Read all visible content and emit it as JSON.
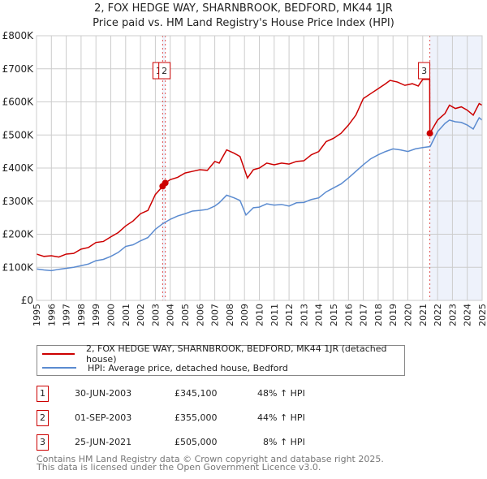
{
  "chart_data": {
    "type": "line",
    "title": "2, FOX HEDGE WAY, SHARNBROOK, BEDFORD, MK44 1JR",
    "subtitle": "Price paid vs. HM Land Registry's House Price Index (HPI)",
    "xlim": [
      1995,
      2025
    ],
    "ylim": [
      0,
      800000
    ],
    "x_ticks": [
      "1995",
      "1996",
      "1997",
      "1998",
      "1999",
      "2000",
      "2001",
      "2002",
      "2003",
      "2004",
      "2005",
      "2006",
      "2007",
      "2008",
      "2009",
      "2010",
      "2011",
      "2012",
      "2013",
      "2014",
      "2015",
      "2016",
      "2017",
      "2018",
      "2019",
      "2020",
      "2021",
      "2022",
      "2023",
      "2024",
      "2025"
    ],
    "y_ticks": [
      {
        "v": 0,
        "label": "£0"
      },
      {
        "v": 100000,
        "label": "£100K"
      },
      {
        "v": 200000,
        "label": "£200K"
      },
      {
        "v": 300000,
        "label": "£300K"
      },
      {
        "v": 400000,
        "label": "£400K"
      },
      {
        "v": 500000,
        "label": "£500K"
      },
      {
        "v": 600000,
        "label": "£600K"
      },
      {
        "v": 700000,
        "label": "£700K"
      },
      {
        "v": 800000,
        "label": "£800K"
      }
    ],
    "grid": true,
    "series": [
      {
        "name": "2, FOX HEDGE WAY, SHARNBROOK, BEDFORD, MK44 1JR (detached house)",
        "color": "#cc0000",
        "x": [
          1995,
          1995.5,
          1996,
          1996.5,
          1997,
          1997.5,
          1998,
          1998.5,
          1999,
          1999.5,
          2000,
          2000.5,
          2001,
          2001.5,
          2002,
          2002.5,
          2003,
          2003.5,
          2003.67,
          2004,
          2004.5,
          2005,
          2005.5,
          2006,
          2006.5,
          2007,
          2007.3,
          2007.8,
          2008.3,
          2008.7,
          2009.2,
          2009.6,
          2010,
          2010.5,
          2011,
          2011.5,
          2012,
          2012.5,
          2013,
          2013.5,
          2014,
          2014.5,
          2015,
          2015.5,
          2016,
          2016.5,
          2017,
          2017.5,
          2018,
          2018.5,
          2018.8,
          2019.3,
          2019.8,
          2020.3,
          2020.7,
          2021,
          2021.3,
          2021.47,
          2021.48,
          2022,
          2022.5,
          2022.8,
          2023.2,
          2023.6,
          2024,
          2024.4,
          2024.8,
          2025
        ],
        "y": [
          140000,
          133000,
          135000,
          131000,
          140000,
          142000,
          155000,
          160000,
          175000,
          178000,
          192000,
          205000,
          225000,
          240000,
          262000,
          272000,
          320000,
          345100,
          355000,
          365000,
          372000,
          385000,
          390000,
          395000,
          393000,
          420000,
          415000,
          455000,
          445000,
          435000,
          370000,
          395000,
          400000,
          415000,
          410000,
          415000,
          412000,
          420000,
          422000,
          440000,
          450000,
          480000,
          490000,
          505000,
          530000,
          560000,
          610000,
          625000,
          640000,
          655000,
          665000,
          660000,
          650000,
          655000,
          648000,
          668000,
          668000,
          668000,
          505000,
          545000,
          565000,
          590000,
          580000,
          585000,
          575000,
          560000,
          595000,
          590000
        ]
      },
      {
        "name": "HPI: Average price, detached house, Bedford",
        "color": "#5b8bd0",
        "x": [
          1995,
          1995.5,
          1996,
          1996.5,
          1997,
          1997.5,
          1998,
          1998.5,
          1999,
          1999.5,
          2000,
          2000.5,
          2001,
          2001.5,
          2002,
          2002.5,
          2003,
          2003.5,
          2004,
          2004.5,
          2005,
          2005.5,
          2006,
          2006.5,
          2007,
          2007.3,
          2007.8,
          2008.3,
          2008.7,
          2009.1,
          2009.6,
          2010,
          2010.5,
          2011,
          2011.5,
          2012,
          2012.5,
          2013,
          2013.5,
          2014,
          2014.5,
          2015,
          2015.5,
          2016,
          2016.5,
          2017,
          2017.5,
          2018,
          2018.5,
          2019,
          2019.5,
          2020,
          2020.5,
          2021,
          2021.5,
          2022,
          2022.5,
          2022.8,
          2023.2,
          2023.6,
          2024,
          2024.4,
          2024.8,
          2025
        ],
        "y": [
          95000,
          92000,
          90000,
          94000,
          97000,
          100000,
          105000,
          110000,
          120000,
          124000,
          133000,
          145000,
          163000,
          168000,
          180000,
          190000,
          215000,
          232000,
          245000,
          255000,
          262000,
          270000,
          272000,
          275000,
          285000,
          295000,
          318000,
          310000,
          302000,
          258000,
          280000,
          282000,
          292000,
          288000,
          290000,
          285000,
          295000,
          296000,
          305000,
          310000,
          328000,
          340000,
          352000,
          370000,
          390000,
          410000,
          428000,
          440000,
          450000,
          458000,
          455000,
          450000,
          458000,
          462000,
          465000,
          510000,
          535000,
          545000,
          540000,
          538000,
          530000,
          518000,
          552000,
          545000
        ]
      }
    ],
    "sales": [
      {
        "id": "1",
        "date": "30-JUN-2003",
        "x": 2003.49,
        "price": 345100,
        "price_label": "£345,100",
        "hpi": "48% ↑ HPI"
      },
      {
        "id": "2",
        "date": "01-SEP-2003",
        "x": 2003.67,
        "price": 355000,
        "price_label": "£355,000",
        "hpi": "44% ↑ HPI"
      },
      {
        "id": "3",
        "date": "25-JUN-2021",
        "x": 2021.48,
        "price": 505000,
        "price_label": "£505,000",
        "hpi": "8% ↑ HPI"
      }
    ],
    "legend_placement": "below"
  },
  "footer": {
    "line1": "Contains HM Land Registry data © Crown copyright and database right 2025.",
    "line2": "This data is licensed under the Open Government Licence v3.0."
  }
}
